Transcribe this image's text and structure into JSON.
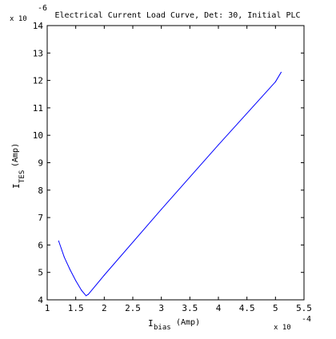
{
  "chart_data": {
    "type": "line",
    "title": "Electrical Current Load Curve, Det: 30, Initial PLC",
    "xlabel": {
      "main": "I",
      "sub": "bias",
      "unit": "(Amp)"
    },
    "ylabel": {
      "main": "I",
      "sub": "TES",
      "unit": "(Amp)"
    },
    "x_multiplier": {
      "base": "x 10",
      "exponent": "-4"
    },
    "y_multiplier": {
      "base": "x 10",
      "exponent": "-6"
    },
    "xlim": [
      1,
      5.5
    ],
    "ylim": [
      4,
      14
    ],
    "xticks": [
      "1",
      "1.5",
      "2",
      "2.5",
      "3",
      "3.5",
      "4",
      "4.5",
      "5",
      "5.5"
    ],
    "yticks": [
      "4",
      "5",
      "6",
      "7",
      "8",
      "9",
      "10",
      "11",
      "12",
      "13",
      "14"
    ],
    "grid": false,
    "series": [
      {
        "color": "#0000ff",
        "x": [
          1.2,
          1.3,
          1.4,
          1.5,
          1.6,
          1.68,
          1.72,
          2.0,
          3.0,
          4.0,
          5.0,
          5.1
        ],
        "y": [
          6.15,
          5.55,
          5.1,
          4.7,
          4.35,
          4.15,
          4.2,
          4.9,
          7.3,
          9.65,
          11.95,
          12.3
        ]
      }
    ]
  }
}
